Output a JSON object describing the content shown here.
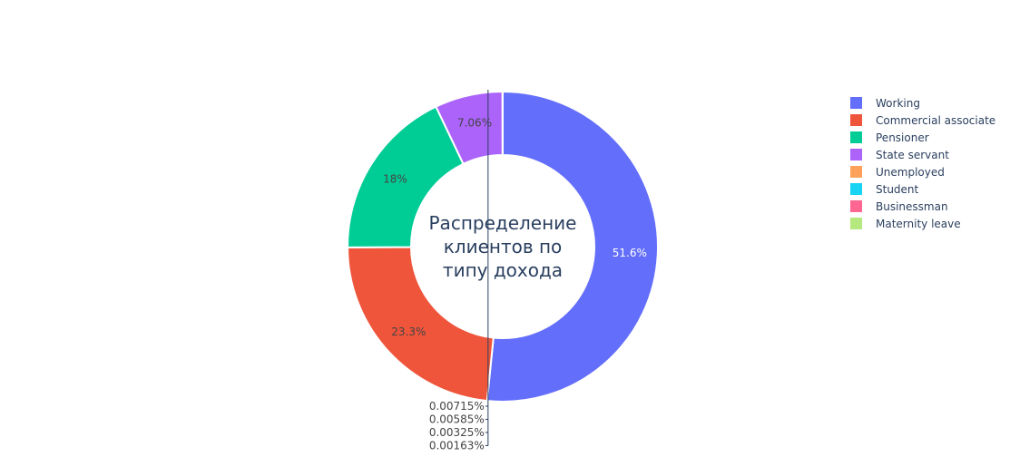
{
  "chart_data": {
    "type": "pie",
    "hole": 0.4,
    "title_lines": [
      "Распределение",
      "клиентов по",
      "типу дохода"
    ],
    "legend_placement": "right",
    "slices": [
      {
        "label": "Working",
        "value": 51.6,
        "text": "51.6%",
        "color": "#636efa",
        "text_color": "#ffffff",
        "placement": "inside"
      },
      {
        "label": "Commercial associate",
        "value": 23.3,
        "text": "23.3%",
        "color": "#ef553b",
        "text_color": "#444444",
        "placement": "inside"
      },
      {
        "label": "Pensioner",
        "value": 18.0,
        "text": "18%",
        "color": "#00cc96",
        "text_color": "#444444",
        "placement": "inside"
      },
      {
        "label": "State servant",
        "value": 7.06,
        "text": "7.06%",
        "color": "#ab63fa",
        "text_color": "#444444",
        "placement": "inside"
      },
      {
        "label": "Unemployed",
        "value": 0.00715,
        "text": "0.00715%",
        "color": "#ffa15a",
        "text_color": "#444444",
        "placement": "outside"
      },
      {
        "label": "Student",
        "value": 0.00585,
        "text": "0.00585%",
        "color": "#19d3f3",
        "text_color": "#444444",
        "placement": "outside"
      },
      {
        "label": "Businessman",
        "value": 0.00325,
        "text": "0.00325%",
        "color": "#ff6692",
        "text_color": "#444444",
        "placement": "outside"
      },
      {
        "label": "Maternity leave",
        "value": 0.00163,
        "text": "0.00163%",
        "color": "#b6e880",
        "text_color": "#444444",
        "placement": "outside"
      }
    ]
  }
}
